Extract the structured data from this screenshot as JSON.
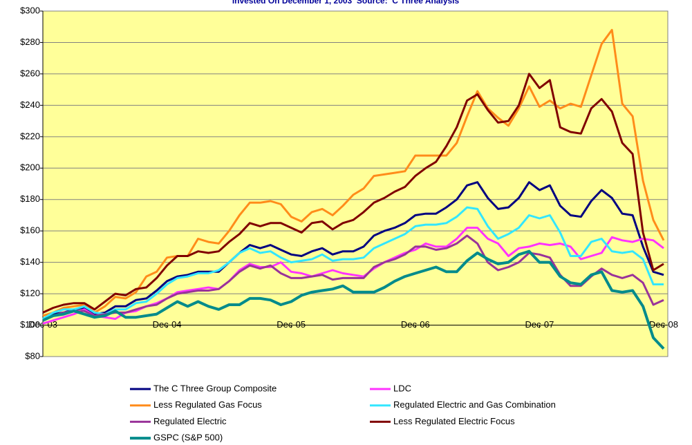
{
  "chart_data": {
    "type": "line",
    "title": "Invested On December 1, 2003  Source:  C Three Analysis",
    "categories": [
      "Dec-03",
      null,
      null,
      null,
      null,
      null,
      null,
      null,
      null,
      null,
      null,
      null,
      "Dec-04",
      null,
      null,
      null,
      null,
      null,
      null,
      null,
      null,
      null,
      null,
      null,
      "Dec-05",
      null,
      null,
      null,
      null,
      null,
      null,
      null,
      null,
      null,
      null,
      null,
      "Dec-06",
      null,
      null,
      null,
      null,
      null,
      null,
      null,
      null,
      null,
      null,
      null,
      "Dec-07",
      null,
      null,
      null,
      null,
      null,
      null,
      null,
      null,
      null,
      null,
      null,
      "Dec-08"
    ],
    "ylim": [
      80,
      300
    ],
    "yticks": [
      {
        "value": 80,
        "label": "$80"
      },
      {
        "value": 100,
        "label": "$100"
      },
      {
        "value": 120,
        "label": "$120"
      },
      {
        "value": 140,
        "label": "$140"
      },
      {
        "value": 160,
        "label": "$160"
      },
      {
        "value": 180,
        "label": "$180"
      },
      {
        "value": 200,
        "label": "$200"
      },
      {
        "value": 220,
        "label": "$220"
      },
      {
        "value": 240,
        "label": "$240"
      },
      {
        "value": 260,
        "label": "$260"
      },
      {
        "value": 280,
        "label": "$280"
      },
      {
        "value": 300,
        "label": "$300"
      }
    ],
    "xaxis_crosses": 100,
    "grid": true,
    "background": "#ffff99",
    "series": [
      {
        "name": "The C Three Group Composite",
        "color": "#000080",
        "values": [
          104,
          107,
          108,
          110,
          111,
          107,
          108,
          112,
          112,
          116,
          117,
          122,
          128,
          131,
          132,
          134,
          134,
          134,
          140,
          146,
          151,
          149,
          151,
          148,
          145,
          144,
          147,
          149,
          145,
          147,
          147,
          150,
          157,
          160,
          162,
          165,
          170,
          171,
          171,
          175,
          180,
          189,
          191,
          181,
          174,
          175,
          181,
          191,
          186,
          189,
          176,
          170,
          169,
          179,
          186,
          181,
          171,
          170,
          150,
          134,
          132
        ]
      },
      {
        "name": "LDC",
        "color": "#ff33ff",
        "values": [
          101,
          103,
          105,
          107,
          110,
          106,
          105,
          104,
          108,
          109,
          112,
          114,
          117,
          121,
          122,
          123,
          124,
          123,
          128,
          135,
          139,
          137,
          137,
          140,
          134,
          133,
          131,
          133,
          135,
          133,
          132,
          131,
          136,
          140,
          143,
          146,
          148,
          152,
          150,
          150,
          155,
          162,
          162,
          155,
          152,
          144,
          149,
          150,
          152,
          151,
          152,
          150,
          142,
          144,
          146,
          156,
          154,
          153,
          155,
          154,
          149
        ]
      },
      {
        "name": "Less Regulated Gas Focus",
        "color": "#ff8c1a",
        "values": [
          106,
          108,
          111,
          112,
          113,
          108,
          112,
          118,
          117,
          121,
          131,
          134,
          143,
          144,
          144,
          155,
          153,
          152,
          160,
          170,
          178,
          178,
          179,
          177,
          169,
          166,
          172,
          174,
          170,
          176,
          183,
          187,
          195,
          196,
          197,
          198,
          208,
          208,
          208,
          208,
          216,
          233,
          249,
          238,
          232,
          227,
          238,
          252,
          239,
          243,
          238,
          241,
          239,
          259,
          279,
          288,
          241,
          233,
          192,
          167,
          154
        ]
      },
      {
        "name": "Regulated Electric and Gas Combination",
        "color": "#33e6ff",
        "values": [
          104,
          108,
          110,
          110,
          112,
          108,
          107,
          110,
          110,
          114,
          115,
          120,
          126,
          130,
          131,
          133,
          133,
          135,
          140,
          146,
          149,
          146,
          147,
          143,
          140,
          141,
          142,
          145,
          141,
          142,
          142,
          143,
          149,
          152,
          155,
          158,
          163,
          164,
          164,
          165,
          169,
          175,
          174,
          163,
          155,
          158,
          162,
          170,
          168,
          170,
          159,
          144,
          144,
          153,
          155,
          147,
          146,
          147,
          142,
          126,
          126
        ]
      },
      {
        "name": "Regulated Electric",
        "color": "#993399",
        "values": [
          103,
          106,
          108,
          109,
          109,
          106,
          107,
          108,
          108,
          110,
          112,
          113,
          117,
          120,
          121,
          122,
          122,
          123,
          128,
          134,
          138,
          136,
          138,
          133,
          130,
          130,
          131,
          132,
          129,
          130,
          130,
          130,
          137,
          140,
          142,
          145,
          150,
          150,
          148,
          149,
          152,
          157,
          152,
          140,
          135,
          137,
          140,
          146,
          145,
          143,
          132,
          125,
          125,
          131,
          136,
          132,
          130,
          132,
          127,
          113,
          116
        ]
      },
      {
        "name": "Less Regulated Electric Focus",
        "color": "#800000",
        "values": [
          108,
          111,
          113,
          114,
          114,
          110,
          115,
          120,
          119,
          123,
          124,
          130,
          138,
          144,
          144,
          147,
          146,
          147,
          153,
          158,
          165,
          163,
          165,
          165,
          162,
          159,
          165,
          166,
          161,
          165,
          167,
          172,
          178,
          181,
          185,
          188,
          195,
          200,
          204,
          214,
          226,
          243,
          247,
          237,
          229,
          230,
          240,
          260,
          251,
          256,
          226,
          223,
          222,
          238,
          244,
          236,
          216,
          209,
          159,
          135,
          139
        ]
      },
      {
        "name": "GSPC (S&P 500)",
        "color": "#008b8b",
        "width": 4,
        "values": [
          103,
          106,
          107,
          109,
          107,
          105,
          106,
          109,
          105,
          105,
          106,
          107,
          111,
          115,
          112,
          115,
          112,
          110,
          113,
          113,
          117,
          117,
          116,
          113,
          115,
          119,
          121,
          122,
          123,
          125,
          121,
          121,
          121,
          124,
          128,
          131,
          133,
          135,
          137,
          134,
          134,
          141,
          146,
          142,
          139,
          140,
          145,
          147,
          140,
          140,
          131,
          127,
          126,
          132,
          134,
          122,
          121,
          122,
          112,
          92,
          85
        ]
      }
    ]
  }
}
